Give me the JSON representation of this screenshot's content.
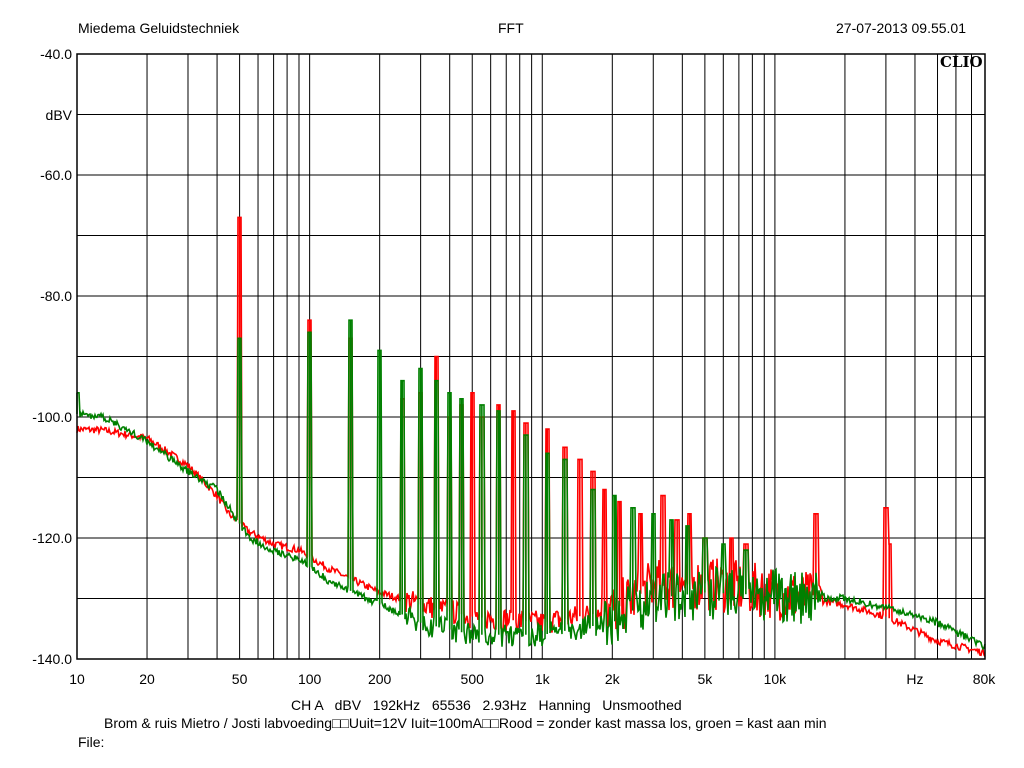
{
  "header": {
    "left": "Miedema Geluidstechniek",
    "center": "FFT",
    "right": "27-07-2013 09.55.01"
  },
  "logo_text": "CLIO",
  "colors": {
    "background": "#ffffff",
    "grid": "#000000",
    "series_red": "#ff0000",
    "series_green": "#008000"
  },
  "footer": {
    "settings": "CH A   dBV   192kHz   65536   2.93Hz   Hanning   Unsmoothed",
    "description": "Brom & ruis Mietro / Josti labvoeding□□Uuit=12V Iuit=100mA□□Rood = zonder kast massa los, groen = kast aan min",
    "file_label": "File:"
  },
  "chart_data": {
    "type": "line",
    "x_scale": "log",
    "xlim": [
      10,
      80000
    ],
    "ylim": [
      -140,
      -40
    ],
    "ylabel": "dBV",
    "xlabel_unit": "Hz",
    "grid": true,
    "y_tick_labels": [
      "-40.0",
      "-60.0",
      "-80.0",
      "-100.0",
      "-120.0",
      "-140.0"
    ],
    "y_tick_values": [
      -40,
      -60,
      -80,
      -100,
      -120,
      -140
    ],
    "x_tick_labels": [
      {
        "label": "10",
        "value": 10
      },
      {
        "label": "20",
        "value": 20
      },
      {
        "label": "50",
        "value": 50
      },
      {
        "label": "100",
        "value": 100
      },
      {
        "label": "200",
        "value": 200
      },
      {
        "label": "500",
        "value": 500
      },
      {
        "label": "1k",
        "value": 1000
      },
      {
        "label": "2k",
        "value": 2000
      },
      {
        "label": "5k",
        "value": 5000
      },
      {
        "label": "10k",
        "value": 10000
      },
      {
        "label": "Hz",
        "value": 40000
      },
      {
        "label": "80k",
        "value": 80000
      }
    ],
    "series": [
      {
        "color": "#ff0000",
        "baseline": [
          [
            10,
            -102
          ],
          [
            13,
            -102.2
          ],
          [
            20,
            -103.5
          ],
          [
            30,
            -108
          ],
          [
            40,
            -113
          ],
          [
            45,
            -116
          ],
          [
            55,
            -119
          ],
          [
            70,
            -121
          ],
          [
            90,
            -122
          ],
          [
            120,
            -125
          ],
          [
            200,
            -129
          ],
          [
            300,
            -131
          ],
          [
            500,
            -133
          ],
          [
            1000,
            -134
          ],
          [
            2000,
            -132
          ],
          [
            3000,
            -128
          ],
          [
            5000,
            -127.5
          ],
          [
            10000,
            -129
          ],
          [
            20000,
            -131
          ],
          [
            30000,
            -133
          ],
          [
            50000,
            -137
          ],
          [
            80000,
            -139
          ]
        ],
        "peaks": [
          [
            50,
            -67
          ],
          [
            100,
            -84
          ],
          [
            150,
            -87
          ],
          [
            250,
            -97
          ],
          [
            300,
            -96
          ],
          [
            350,
            -90
          ],
          [
            400,
            -100
          ],
          [
            450,
            -98
          ],
          [
            500,
            -96
          ],
          [
            550,
            -100
          ],
          [
            650,
            -98
          ],
          [
            750,
            -99
          ],
          [
            850,
            -101
          ],
          [
            1050,
            -102
          ],
          [
            1250,
            -105
          ],
          [
            1450,
            -107
          ],
          [
            1650,
            -109
          ],
          [
            1850,
            -112
          ],
          [
            2150,
            -114
          ],
          [
            2650,
            -116
          ],
          [
            3300,
            -113
          ],
          [
            3800,
            -117
          ],
          [
            4300,
            -116
          ],
          [
            5000,
            -120
          ],
          [
            6500,
            -120
          ],
          [
            7500,
            -121
          ],
          [
            15000,
            -116
          ],
          [
            30000,
            -115
          ],
          [
            31000,
            -121
          ]
        ]
      },
      {
        "color": "#008000",
        "baseline": [
          [
            10,
            -99.5
          ],
          [
            13,
            -100
          ],
          [
            20,
            -104
          ],
          [
            30,
            -109
          ],
          [
            40,
            -112
          ],
          [
            45,
            -115
          ],
          [
            55,
            -120
          ],
          [
            70,
            -122
          ],
          [
            90,
            -123.5
          ],
          [
            120,
            -127
          ],
          [
            200,
            -131
          ],
          [
            300,
            -134
          ],
          [
            500,
            -136
          ],
          [
            1000,
            -136
          ],
          [
            2000,
            -134
          ],
          [
            3000,
            -130
          ],
          [
            5000,
            -129
          ],
          [
            10000,
            -129.5
          ],
          [
            20000,
            -130
          ],
          [
            30000,
            -131.5
          ],
          [
            50000,
            -134
          ],
          [
            80000,
            -138
          ]
        ],
        "peaks": [
          [
            10,
            -96
          ],
          [
            50,
            -87
          ],
          [
            100,
            -86
          ],
          [
            150,
            -84
          ],
          [
            200,
            -89
          ],
          [
            250,
            -94
          ],
          [
            300,
            -92
          ],
          [
            350,
            -94
          ],
          [
            400,
            -96
          ],
          [
            450,
            -97
          ],
          [
            550,
            -98
          ],
          [
            650,
            -99
          ],
          [
            850,
            -103
          ],
          [
            1050,
            -106
          ],
          [
            1250,
            -107
          ],
          [
            1650,
            -112
          ],
          [
            2050,
            -113
          ],
          [
            2450,
            -115
          ],
          [
            3000,
            -116
          ],
          [
            3600,
            -117
          ],
          [
            4200,
            -118
          ],
          [
            5000,
            -120
          ],
          [
            6000,
            -121
          ],
          [
            7500,
            -122
          ]
        ]
      }
    ]
  }
}
